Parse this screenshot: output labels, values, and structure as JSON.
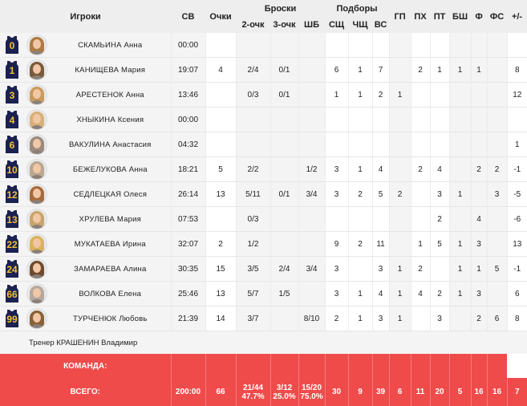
{
  "headers": {
    "players": "Игроки",
    "min": "СВ",
    "pts": "Очки",
    "shots": "Броски",
    "two": "2-очк",
    "three": "3-очк",
    "ft": "ШБ",
    "reb": "Подборы",
    "oreb": "СЩ",
    "dreb": "ЧЩ",
    "treb": "ВС",
    "ast": "ГП",
    "to": "ПХ",
    "stl": "ПТ",
    "blk": "БШ",
    "pf": "Ф",
    "fd": "ФС",
    "pm": "+/-"
  },
  "colors": {
    "jersey": "#1b2150",
    "jersey_number": "#f2c230",
    "team_row": "#ef4b4b"
  },
  "players": [
    {
      "num": "0",
      "name": "СКАМЬИНА Анна",
      "hair": "#b07a44",
      "min": "00:00",
      "pts": "",
      "two": "",
      "three": "",
      "ft": "",
      "oreb": "",
      "dreb": "",
      "treb": "",
      "ast": "",
      "to": "",
      "stl": "",
      "blk": "",
      "pf": "",
      "fd": "",
      "pm": ""
    },
    {
      "num": "1",
      "name": "КАНИЩЕВА Мария",
      "hair": "#7a5a3a",
      "min": "19:07",
      "pts": "4",
      "two": "2/4",
      "three": "0/1",
      "ft": "",
      "oreb": "6",
      "dreb": "1",
      "treb": "7",
      "ast": "",
      "to": "2",
      "stl": "1",
      "blk": "1",
      "pf": "1",
      "fd": "",
      "pm": "8"
    },
    {
      "num": "3",
      "name": "АРЕСТЕНОК Анна",
      "hair": "#c99a5c",
      "min": "13:46",
      "pts": "",
      "two": "0/3",
      "three": "0/1",
      "ft": "",
      "oreb": "1",
      "dreb": "1",
      "treb": "2",
      "ast": "1",
      "to": "",
      "stl": "",
      "blk": "",
      "pf": "",
      "fd": "",
      "pm": "12"
    },
    {
      "num": "4",
      "name": "ХНЫКИНА Ксения",
      "hair": "#d8b078",
      "min": "00:00",
      "pts": "",
      "two": "",
      "three": "",
      "ft": "",
      "oreb": "",
      "dreb": "",
      "treb": "",
      "ast": "",
      "to": "",
      "stl": "",
      "blk": "",
      "pf": "",
      "fd": "",
      "pm": ""
    },
    {
      "num": "6",
      "name": "ВАКУЛИНА Анастасия",
      "hair": "#9b8a7e",
      "min": "04:32",
      "pts": "",
      "two": "",
      "three": "",
      "ft": "",
      "oreb": "",
      "dreb": "",
      "treb": "",
      "ast": "",
      "to": "",
      "stl": "",
      "blk": "",
      "pf": "",
      "fd": "",
      "pm": "1"
    },
    {
      "num": "10",
      "name": "БЕЖЕЛУКОВА Анна",
      "hair": "#b9a890",
      "min": "18:21",
      "pts": "5",
      "two": "2/2",
      "three": "",
      "ft": "1/2",
      "oreb": "3",
      "dreb": "1",
      "treb": "4",
      "ast": "",
      "to": "2",
      "stl": "4",
      "blk": "",
      "pf": "2",
      "fd": "2",
      "pm": "-1"
    },
    {
      "num": "12",
      "name": "СЕДЛЕЦКАЯ Олеся",
      "hair": "#a86a3a",
      "min": "26:14",
      "pts": "13",
      "two": "5/11",
      "three": "0/1",
      "ft": "3/4",
      "oreb": "3",
      "dreb": "2",
      "treb": "5",
      "ast": "2",
      "to": "",
      "stl": "3",
      "blk": "1",
      "pf": "",
      "fd": "3",
      "pm": "-5"
    },
    {
      "num": "13",
      "name": "ХРУЛЕВА Мария",
      "hair": "#c8a56a",
      "min": "07:53",
      "pts": "",
      "two": "0/3",
      "three": "",
      "ft": "",
      "oreb": "",
      "dreb": "",
      "treb": "",
      "ast": "",
      "to": "",
      "stl": "2",
      "blk": "",
      "pf": "4",
      "fd": "",
      "pm": "-6"
    },
    {
      "num": "22",
      "name": "МУКАТАЕВА Ирина",
      "hair": "#d9b25a",
      "min": "32:07",
      "pts": "2",
      "two": "1/2",
      "three": "",
      "ft": "",
      "oreb": "9",
      "dreb": "2",
      "treb": "11",
      "ast": "",
      "to": "1",
      "stl": "5",
      "blk": "1",
      "pf": "3",
      "fd": "",
      "pm": "13"
    },
    {
      "num": "24",
      "name": "ЗАМАРАЕВА Алина",
      "hair": "#6e4a2e",
      "min": "30:35",
      "pts": "15",
      "two": "3/5",
      "three": "2/4",
      "ft": "3/4",
      "oreb": "3",
      "dreb": "",
      "treb": "3",
      "ast": "1",
      "to": "2",
      "stl": "",
      "blk": "1",
      "pf": "1",
      "fd": "5",
      "pm": "-1"
    },
    {
      "num": "66",
      "name": "ВОЛКОВА Елена",
      "hair": "#b5a8a0",
      "min": "25:46",
      "pts": "13",
      "two": "5/7",
      "three": "1/5",
      "ft": "",
      "oreb": "3",
      "dreb": "1",
      "treb": "4",
      "ast": "1",
      "to": "4",
      "stl": "2",
      "blk": "1",
      "pf": "3",
      "fd": "",
      "pm": "6"
    },
    {
      "num": "99",
      "name": "ТУРЧЕНЮК Любовь",
      "hair": "#8a6038",
      "min": "21:39",
      "pts": "14",
      "two": "3/7",
      "three": "",
      "ft": "8/10",
      "oreb": "2",
      "dreb": "1",
      "treb": "3",
      "ast": "1",
      "to": "",
      "stl": "3",
      "blk": "",
      "pf": "2",
      "fd": "6",
      "pm": "8"
    }
  ],
  "coach": "Тренер КРАШЕНИН Владимир",
  "team": {
    "label": "КОМАНДА:"
  },
  "total": {
    "label": "ВСЕГО:",
    "min": "200:00",
    "pts": "66",
    "two": "21/44",
    "two_pct": "47.7%",
    "three": "3/12",
    "three_pct": "25.0%",
    "ft": "15/20",
    "ft_pct": "75.0%",
    "oreb": "30",
    "dreb": "9",
    "treb": "39",
    "ast": "6",
    "to": "11",
    "stl": "20",
    "blk": "5",
    "pf": "16",
    "fd": "16",
    "pm": "7"
  }
}
